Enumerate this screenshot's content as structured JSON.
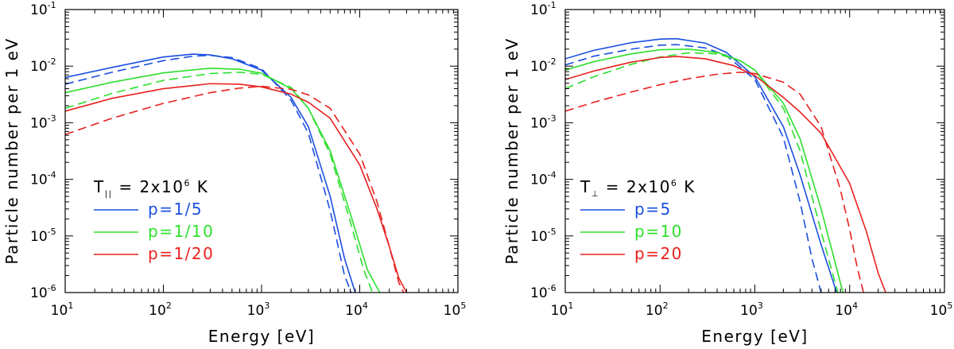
{
  "chart_data": [
    {
      "type": "line",
      "panel": "left",
      "xlabel": "Energy [eV]",
      "ylabel": "Particle number per 1 eV",
      "xscale": "log",
      "yscale": "log",
      "xlim": [
        10,
        100000
      ],
      "ylim": [
        1e-06,
        0.1
      ],
      "x_ticks": [
        {
          "base": "10",
          "exp": "1"
        },
        {
          "base": "10",
          "exp": "2"
        },
        {
          "base": "10",
          "exp": "3"
        },
        {
          "base": "10",
          "exp": "4"
        },
        {
          "base": "10",
          "exp": "5"
        }
      ],
      "y_ticks": [
        {
          "base": "10",
          "exp": "-6"
        },
        {
          "base": "10",
          "exp": "-5"
        },
        {
          "base": "10",
          "exp": "-4"
        },
        {
          "base": "10",
          "exp": "-3"
        },
        {
          "base": "10",
          "exp": "-2"
        },
        {
          "base": "10",
          "exp": "-1"
        }
      ],
      "legend": {
        "position": "lower-left",
        "header": {
          "symbol": "T",
          "subscript": "||",
          "text": " = 2x10",
          "exp": "6",
          "unit": " K"
        },
        "entries": [
          "p=1/5",
          "p=1/10",
          "p=1/20"
        ]
      },
      "series": [
        {
          "name": "p=1/5 solid",
          "color": "#1a4fe0",
          "dash": false,
          "x": [
            10,
            30,
            100,
            200,
            300,
            500,
            1000,
            2000,
            3000,
            5000,
            7000,
            9000
          ],
          "y": [
            0.0063,
            0.0095,
            0.0145,
            0.0163,
            0.0158,
            0.0135,
            0.0085,
            0.0028,
            0.00085,
            5e-05,
            4e-06,
            1e-06
          ]
        },
        {
          "name": "p=1/5 dashed",
          "color": "#1a4fe0",
          "dash": true,
          "x": [
            10,
            30,
            100,
            200,
            300,
            500,
            1000,
            2000,
            3000,
            5000,
            7000,
            8200
          ],
          "y": [
            0.0048,
            0.0078,
            0.0125,
            0.015,
            0.0155,
            0.0142,
            0.009,
            0.0025,
            0.00065,
            2.8e-05,
            2e-06,
            1e-06
          ]
        },
        {
          "name": "p=1/10 solid",
          "color": "#2de02d",
          "dash": false,
          "x": [
            10,
            30,
            100,
            300,
            600,
            1000,
            2000,
            3000,
            5000,
            8000,
            12000,
            16000
          ],
          "y": [
            0.0034,
            0.0052,
            0.0076,
            0.0092,
            0.0088,
            0.0075,
            0.004,
            0.0018,
            0.00032,
            2.5e-05,
            2.5e-06,
            1e-06
          ]
        },
        {
          "name": "p=1/10 dashed",
          "color": "#2de02d",
          "dash": true,
          "x": [
            10,
            30,
            100,
            300,
            600,
            1000,
            2000,
            3000,
            5000,
            8000,
            11000,
            13500
          ],
          "y": [
            0.0018,
            0.0033,
            0.0056,
            0.0074,
            0.0078,
            0.0072,
            0.0042,
            0.0018,
            0.00028,
            1.8e-05,
            2.5e-06,
            1e-06
          ]
        },
        {
          "name": "p=1/20 solid",
          "color": "#e8201e",
          "dash": false,
          "x": [
            10,
            30,
            100,
            300,
            600,
            1000,
            2000,
            3000,
            5000,
            10000,
            15000,
            20000,
            25000,
            30000
          ],
          "y": [
            0.0016,
            0.0027,
            0.004,
            0.0049,
            0.0048,
            0.0043,
            0.0032,
            0.0023,
            0.0012,
            0.00018,
            3e-05,
            6.5e-06,
            1.8e-06,
            1e-06
          ]
        },
        {
          "name": "p=1/20 dashed",
          "color": "#e8201e",
          "dash": true,
          "x": [
            10,
            30,
            100,
            300,
            600,
            1000,
            2000,
            3000,
            5000,
            10000,
            15000,
            20000,
            25000,
            28000
          ],
          "y": [
            0.00062,
            0.0012,
            0.0022,
            0.0034,
            0.0041,
            0.0044,
            0.0039,
            0.0031,
            0.0018,
            0.00028,
            4e-05,
            6.5e-06,
            1.5e-06,
            1e-06
          ]
        }
      ]
    },
    {
      "type": "line",
      "panel": "right",
      "xlabel": "Energy [eV]",
      "ylabel": "Particle number per 1 eV",
      "xscale": "log",
      "yscale": "log",
      "xlim": [
        10,
        100000
      ],
      "ylim": [
        1e-06,
        0.1
      ],
      "x_ticks": [
        {
          "base": "10",
          "exp": "1"
        },
        {
          "base": "10",
          "exp": "2"
        },
        {
          "base": "10",
          "exp": "3"
        },
        {
          "base": "10",
          "exp": "4"
        },
        {
          "base": "10",
          "exp": "5"
        }
      ],
      "y_ticks": [
        {
          "base": "10",
          "exp": "-6"
        },
        {
          "base": "10",
          "exp": "-5"
        },
        {
          "base": "10",
          "exp": "-4"
        },
        {
          "base": "10",
          "exp": "-3"
        },
        {
          "base": "10",
          "exp": "-2"
        },
        {
          "base": "10",
          "exp": "-1"
        }
      ],
      "legend": {
        "position": "lower-left",
        "header": {
          "symbol": "T",
          "subscript": "⊥",
          "text": " = 2x10",
          "exp": "6",
          "unit": " K"
        },
        "entries": [
          "p=5",
          "p=10",
          "p=20"
        ]
      },
      "series": [
        {
          "name": "p=5 solid",
          "color": "#1a4fe0",
          "dash": false,
          "x": [
            10,
            20,
            50,
            100,
            150,
            300,
            500,
            1000,
            2000,
            3000,
            5000,
            7300
          ],
          "y": [
            0.0135,
            0.019,
            0.026,
            0.03,
            0.0305,
            0.0255,
            0.0175,
            0.0065,
            0.00085,
            0.00012,
            7e-06,
            1e-06
          ]
        },
        {
          "name": "p=5 dashed",
          "color": "#1a4fe0",
          "dash": true,
          "x": [
            10,
            20,
            50,
            100,
            150,
            300,
            500,
            1000,
            2000,
            3000,
            4000,
            5000
          ],
          "y": [
            0.0105,
            0.015,
            0.02,
            0.0235,
            0.024,
            0.021,
            0.0155,
            0.0058,
            0.00055,
            4e-05,
            4e-06,
            1e-06
          ]
        },
        {
          "name": "p=10 solid",
          "color": "#2de02d",
          "dash": false,
          "x": [
            10,
            20,
            50,
            100,
            200,
            400,
            700,
            1000,
            2000,
            3000,
            5000,
            8500
          ],
          "y": [
            0.0085,
            0.012,
            0.0165,
            0.0195,
            0.02,
            0.0175,
            0.0125,
            0.0085,
            0.0022,
            0.00052,
            3e-05,
            1e-06
          ]
        },
        {
          "name": "p=10 dashed",
          "color": "#2de02d",
          "dash": true,
          "x": [
            10,
            20,
            50,
            100,
            200,
            400,
            700,
            1000,
            2000,
            3000,
            5000,
            7500
          ],
          "y": [
            0.004,
            0.0065,
            0.0108,
            0.0145,
            0.0172,
            0.0165,
            0.0125,
            0.0085,
            0.0018,
            0.00032,
            1.2e-05,
            1e-06
          ]
        },
        {
          "name": "p=20 solid",
          "color": "#e8201e",
          "dash": false,
          "x": [
            10,
            20,
            50,
            100,
            150,
            300,
            600,
            1000,
            2000,
            3000,
            5000,
            10000,
            15000,
            20000,
            24000
          ],
          "y": [
            0.0058,
            0.0082,
            0.0118,
            0.0142,
            0.0148,
            0.0135,
            0.0102,
            0.0068,
            0.0028,
            0.00155,
            0.00065,
            8.5e-05,
            1.2e-05,
            2.2e-06,
            1e-06
          ]
        },
        {
          "name": "p=20 dashed",
          "color": "#e8201e",
          "dash": true,
          "x": [
            10,
            20,
            50,
            100,
            200,
            400,
            700,
            1000,
            2000,
            3000,
            5000,
            8000,
            10000,
            12000,
            14000
          ],
          "y": [
            0.0016,
            0.0023,
            0.0035,
            0.0047,
            0.006,
            0.0072,
            0.0078,
            0.0074,
            0.0052,
            0.0032,
            0.00085,
            6.5e-05,
            1.3e-05,
            2.8e-06,
            1e-06
          ]
        }
      ]
    }
  ]
}
